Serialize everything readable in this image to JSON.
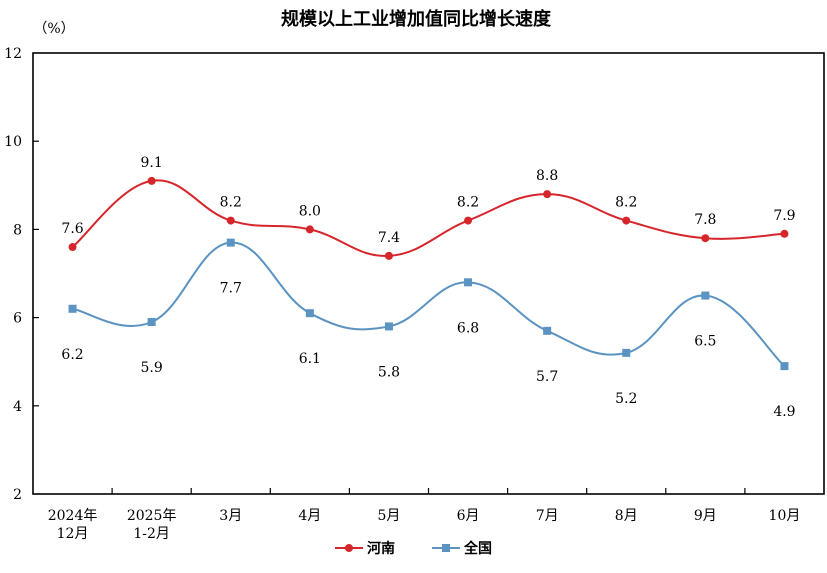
{
  "chart_data": {
    "type": "line",
    "title": "规模以上工业增加值同比增长速度",
    "ylabel": "（%）",
    "xlabel": "",
    "ylim": [
      2,
      12
    ],
    "yticks": [
      2,
      4,
      6,
      8,
      10,
      12
    ],
    "grid": false,
    "smooth": true,
    "legend_position": "bottom-center",
    "categories": [
      [
        "2024年",
        "12月"
      ],
      [
        "2025年",
        "1-2月"
      ],
      [
        "3月"
      ],
      [
        "4月"
      ],
      [
        "5月"
      ],
      [
        "6月"
      ],
      [
        "7月"
      ],
      [
        "8月"
      ],
      [
        "9月"
      ],
      [
        "10月"
      ]
    ],
    "series": [
      {
        "name": "河南",
        "color": "#d7262b",
        "marker": "circle",
        "values": [
          7.6,
          9.1,
          8.2,
          8.0,
          7.4,
          8.2,
          8.8,
          8.2,
          7.8,
          7.9
        ],
        "labels": [
          "7.6",
          "9.1",
          "8.2",
          "8.0",
          "7.4",
          "8.2",
          "8.8",
          "8.2",
          "7.8",
          "7.9"
        ],
        "label_position": "above"
      },
      {
        "name": "全国",
        "color": "#5b93c2",
        "marker": "square",
        "values": [
          6.2,
          5.9,
          7.7,
          6.1,
          5.8,
          6.8,
          5.7,
          5.2,
          6.5,
          4.9
        ],
        "labels": [
          "6.2",
          "5.9",
          "7.7",
          "6.1",
          "5.8",
          "6.8",
          "5.7",
          "5.2",
          "6.5",
          "4.9"
        ],
        "label_position": "below"
      }
    ]
  }
}
